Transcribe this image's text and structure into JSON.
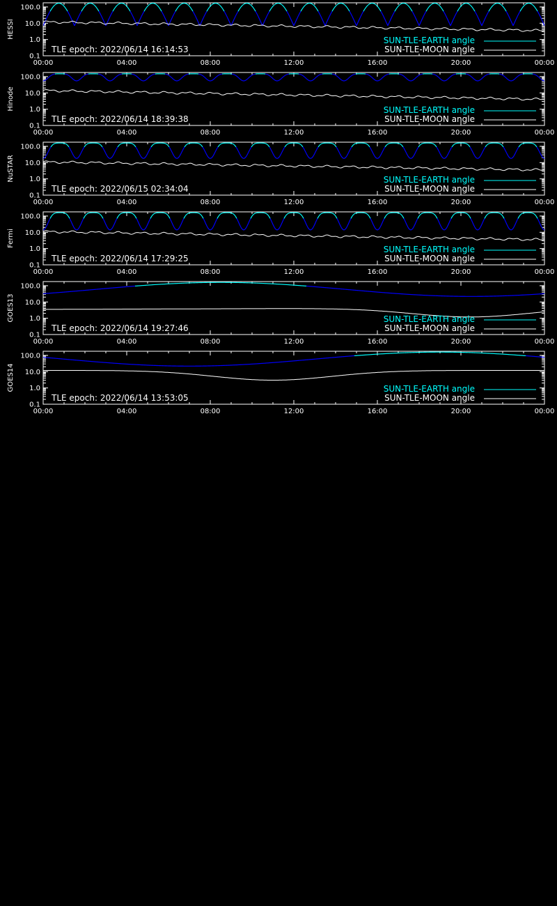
{
  "colors": {
    "background": "#000000",
    "axes": "#ffffff",
    "earth_line": "#00ffff",
    "earth_dip": "#0000ff",
    "moon_line": "#ffffff"
  },
  "legend": {
    "earth_label": "SUN-TLE-EARTH angle",
    "moon_label": "SUN-TLE-MOON angle"
  },
  "chart_data": [
    {
      "type": "line",
      "ylabel": "HESSI",
      "epoch_label": "TLE epoch: 2022/06/14 16:14:53",
      "xtick_labels": [
        "00:00",
        "04:00",
        "08:00",
        "12:00",
        "16:00",
        "20:00",
        "00:00"
      ],
      "ytick_labels": [
        "0.1",
        "1.0",
        "10.0",
        "100.0"
      ],
      "xlim": [
        0,
        24
      ],
      "ylim": [
        0.1,
        180
      ],
      "yscale": "log",
      "orbits": 16,
      "earth_max": 170,
      "earth_min": 7,
      "earth_sharp": true,
      "moon_start": 12,
      "moon_end": 3.5,
      "moon_dip_center": null,
      "moon_dip_min": null
    },
    {
      "type": "line",
      "ylabel": "Hinode",
      "epoch_label": "TLE epoch: 2022/06/14 18:39:38",
      "xtick_labels": [
        "00:00",
        "04:00",
        "08:00",
        "12:00",
        "16:00",
        "20:00",
        "00:00"
      ],
      "ytick_labels": [
        "0.1",
        "1.0",
        "10.0",
        "100.0"
      ],
      "xlim": [
        0,
        24
      ],
      "ylim": [
        0.1,
        180
      ],
      "yscale": "log",
      "orbits": 15,
      "earth_max": 150,
      "earth_min": 55,
      "earth_sharp": false,
      "moon_start": 14,
      "moon_end": 4,
      "moon_dip_center": null,
      "moon_dip_min": null
    },
    {
      "type": "line",
      "ylabel": "NuSTAR",
      "epoch_label": "TLE epoch: 2022/06/15 02:34:04",
      "xtick_labels": [
        "00:00",
        "04:00",
        "08:00",
        "12:00",
        "16:00",
        "20:00",
        "00:00"
      ],
      "ytick_labels": [
        "0.1",
        "1.0",
        "10.0",
        "100.0"
      ],
      "xlim": [
        0,
        24
      ],
      "ylim": [
        0.1,
        180
      ],
      "yscale": "log",
      "orbits": 15,
      "earth_max": 160,
      "earth_min": 18,
      "earth_sharp": false,
      "moon_start": 11,
      "moon_end": 3.5,
      "moon_dip_center": null,
      "moon_dip_min": null
    },
    {
      "type": "line",
      "ylabel": "Fermi",
      "epoch_label": "TLE epoch: 2022/06/14 17:29:25",
      "xtick_labels": [
        "00:00",
        "04:00",
        "08:00",
        "12:00",
        "16:00",
        "20:00",
        "00:00"
      ],
      "ytick_labels": [
        "0.1",
        "1.0",
        "10.0",
        "100.0"
      ],
      "xlim": [
        0,
        24
      ],
      "ylim": [
        0.1,
        180
      ],
      "yscale": "log",
      "orbits": 15,
      "earth_max": 160,
      "earth_min": 14,
      "earth_sharp": false,
      "moon_start": 11,
      "moon_end": 3.5,
      "moon_dip_center": null,
      "moon_dip_min": null
    },
    {
      "type": "line",
      "ylabel": "GOES13",
      "epoch_label": "TLE epoch: 2022/06/14 19:27:46",
      "xtick_labels": [
        "00:00",
        "04:00",
        "08:00",
        "12:00",
        "16:00",
        "20:00",
        "00:00"
      ],
      "ytick_labels": [
        "0.1",
        "1.0",
        "10.0",
        "100.0"
      ],
      "xlim": [
        0,
        24
      ],
      "ylim": [
        0.1,
        180
      ],
      "yscale": "log",
      "orbits": 1,
      "orbit_phase": 8.5,
      "earth_max": 160,
      "earth_min": 22,
      "earth_sharp": false,
      "moon_start": 3.5,
      "moon_end": 4.5,
      "moon_dip_center": 20.5,
      "moon_dip_min": 1.2
    },
    {
      "type": "line",
      "ylabel": "GOES14",
      "epoch_label": "TLE epoch: 2022/06/14 13:53:05",
      "xtick_labels": [
        "00:00",
        "04:00",
        "08:00",
        "12:00",
        "16:00",
        "20:00",
        "00:00"
      ],
      "ytick_labels": [
        "0.1",
        "1.0",
        "10.0",
        "100.0"
      ],
      "xlim": [
        0,
        24
      ],
      "ylim": [
        0.1,
        180
      ],
      "yscale": "log",
      "orbits": 1,
      "orbit_phase": 19,
      "earth_max": 160,
      "earth_min": 22,
      "earth_sharp": false,
      "moon_start": 12,
      "moon_end": 12,
      "moon_dip_center": 11,
      "moon_dip_min": 3
    }
  ]
}
